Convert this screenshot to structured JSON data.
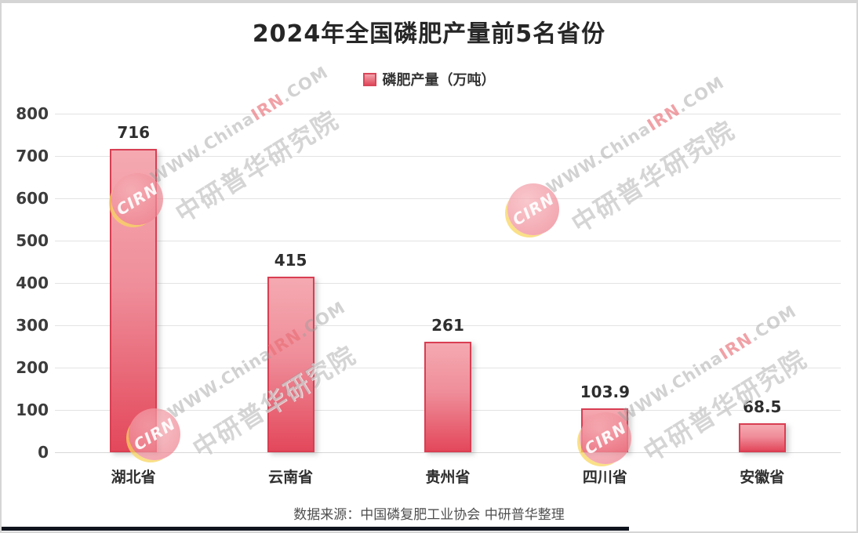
{
  "title": "2024年全国磷肥产量前5名省份",
  "legend": {
    "label": "磷肥产量（万吨）"
  },
  "source": "数据来源：中国磷复肥工业协会 中研普华整理",
  "watermark": {
    "site_prefix": "WWW.China",
    "site_highlight": "IRN",
    "site_suffix": ".COM",
    "org": "中研普华研究院",
    "logo": "CIRN"
  },
  "colors": {
    "bar_fill_top": "#f5a9b1",
    "bar_fill_bottom": "#e3485b",
    "bar_border": "#d93e52",
    "title_text": "#262626",
    "axis_text": "#3c3c3c",
    "grid_line": "#e3e3e3",
    "source_text": "#4f4f4f",
    "bottom_strip": "#10141d"
  },
  "chart_data": {
    "type": "bar",
    "title": "2024年全国磷肥产量前5名省份",
    "series_name": "磷肥产量（万吨）",
    "categories": [
      "湖北省",
      "云南省",
      "贵州省",
      "四川省",
      "安徽省"
    ],
    "values": [
      716,
      415,
      261,
      103.9,
      68.5
    ],
    "value_labels": [
      "716",
      "415",
      "261",
      "103.9",
      "68.5"
    ],
    "xlabel": "",
    "ylabel": "",
    "ylim": [
      0,
      800
    ],
    "ytick_step": 100,
    "grid": true,
    "legend_position": "top"
  }
}
